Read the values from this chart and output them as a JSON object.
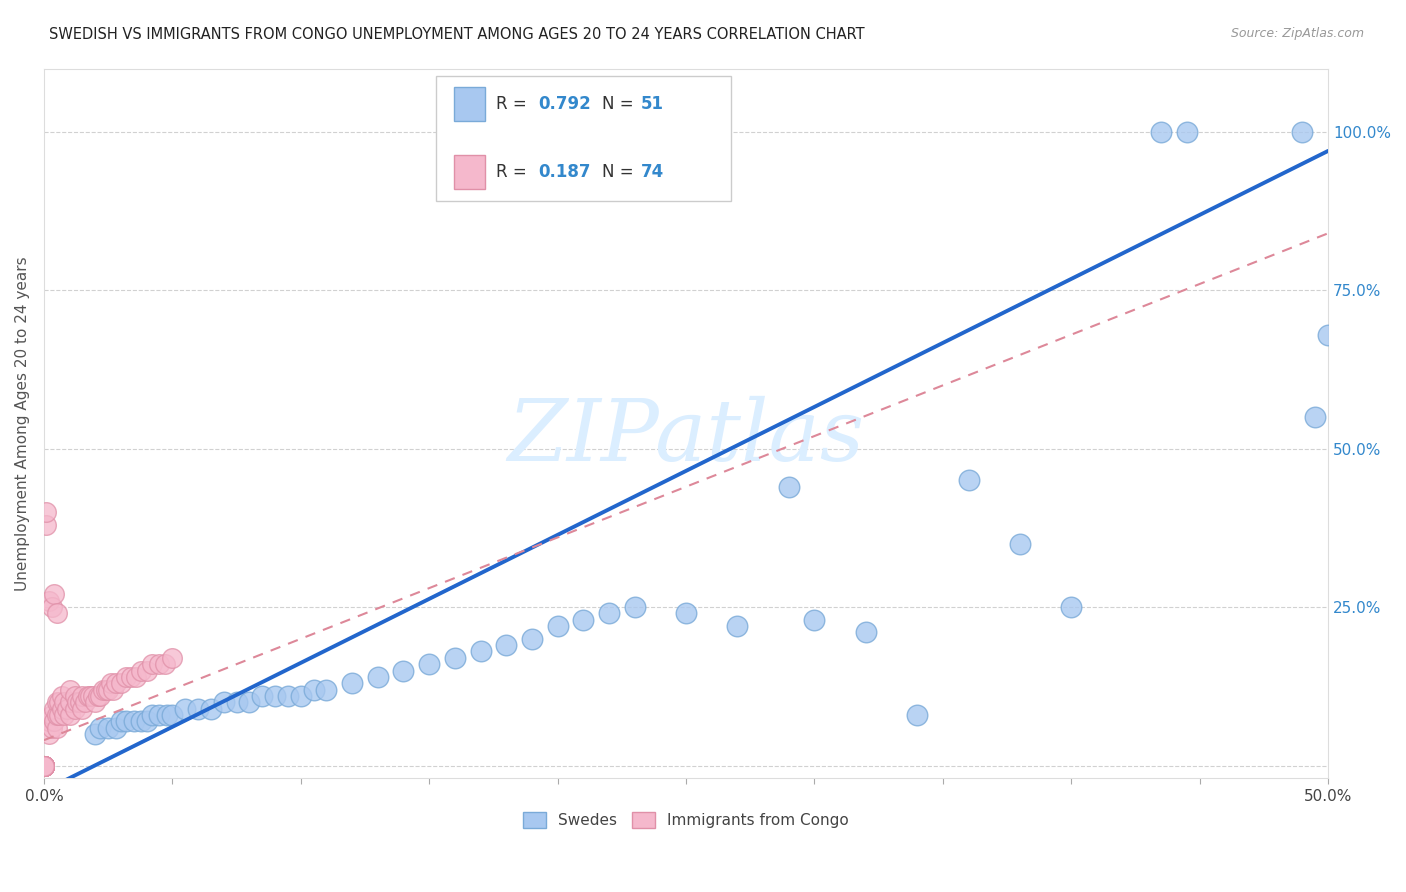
{
  "title": "SWEDISH VS IMMIGRANTS FROM CONGO UNEMPLOYMENT AMONG AGES 20 TO 24 YEARS CORRELATION CHART",
  "source": "Source: ZipAtlas.com",
  "ylabel": "Unemployment Among Ages 20 to 24 years",
  "xlim": [
    0.0,
    0.5
  ],
  "ylim": [
    -0.02,
    1.1
  ],
  "ytick_positions": [
    0.0,
    0.25,
    0.5,
    0.75,
    1.0
  ],
  "ytick_labels": [
    "",
    "25.0%",
    "50.0%",
    "75.0%",
    "100.0%"
  ],
  "legend_label1": "Swedes",
  "legend_label2": "Immigrants from Congo",
  "color_blue": "#a8c8f0",
  "color_blue_edge": "#7aaad8",
  "color_blue_line": "#2266cc",
  "color_pink": "#f5b8cc",
  "color_pink_edge": "#e090a8",
  "color_pink_line": "#e8a0b8",
  "background": "#ffffff",
  "grid_color": "#cccccc",
  "watermark": "ZIPatlas",
  "swedes_x": [
    0.02,
    0.022,
    0.025,
    0.028,
    0.03,
    0.032,
    0.035,
    0.038,
    0.04,
    0.042,
    0.045,
    0.048,
    0.05,
    0.055,
    0.06,
    0.065,
    0.07,
    0.075,
    0.08,
    0.085,
    0.09,
    0.095,
    0.1,
    0.105,
    0.11,
    0.12,
    0.13,
    0.14,
    0.15,
    0.16,
    0.17,
    0.18,
    0.19,
    0.2,
    0.21,
    0.22,
    0.23,
    0.25,
    0.27,
    0.29,
    0.3,
    0.32,
    0.34,
    0.36,
    0.38,
    0.4,
    0.435,
    0.445,
    0.49,
    0.495,
    0.5
  ],
  "swedes_y": [
    0.05,
    0.06,
    0.06,
    0.06,
    0.07,
    0.07,
    0.07,
    0.07,
    0.07,
    0.08,
    0.08,
    0.08,
    0.08,
    0.09,
    0.09,
    0.09,
    0.1,
    0.1,
    0.1,
    0.11,
    0.11,
    0.11,
    0.11,
    0.12,
    0.12,
    0.13,
    0.14,
    0.15,
    0.16,
    0.17,
    0.18,
    0.19,
    0.2,
    0.22,
    0.23,
    0.24,
    0.25,
    0.24,
    0.22,
    0.44,
    0.23,
    0.21,
    0.08,
    0.45,
    0.35,
    0.25,
    1.0,
    1.0,
    1.0,
    0.55,
    0.68
  ],
  "congo_x": [
    0.0,
    0.0,
    0.0,
    0.0,
    0.0,
    0.0,
    0.0,
    0.0,
    0.0,
    0.0,
    0.0,
    0.0,
    0.0,
    0.0,
    0.0,
    0.0,
    0.0,
    0.0,
    0.0,
    0.0,
    0.002,
    0.002,
    0.003,
    0.003,
    0.004,
    0.004,
    0.005,
    0.005,
    0.005,
    0.006,
    0.006,
    0.007,
    0.007,
    0.008,
    0.008,
    0.009,
    0.01,
    0.01,
    0.01,
    0.012,
    0.012,
    0.013,
    0.014,
    0.015,
    0.015,
    0.016,
    0.017,
    0.018,
    0.019,
    0.02,
    0.021,
    0.022,
    0.023,
    0.024,
    0.025,
    0.026,
    0.027,
    0.028,
    0.03,
    0.032,
    0.034,
    0.036,
    0.038,
    0.04,
    0.042,
    0.045,
    0.047,
    0.05,
    0.001,
    0.001,
    0.002,
    0.003,
    0.004,
    0.005
  ],
  "congo_y": [
    0.0,
    0.0,
    0.0,
    0.0,
    0.0,
    0.0,
    0.0,
    0.0,
    0.0,
    0.0,
    0.0,
    0.0,
    0.0,
    0.0,
    0.0,
    0.0,
    0.0,
    0.0,
    0.0,
    0.0,
    0.05,
    0.07,
    0.06,
    0.08,
    0.07,
    0.09,
    0.06,
    0.08,
    0.1,
    0.08,
    0.1,
    0.09,
    0.11,
    0.08,
    0.1,
    0.09,
    0.08,
    0.1,
    0.12,
    0.09,
    0.11,
    0.1,
    0.1,
    0.09,
    0.11,
    0.1,
    0.11,
    0.11,
    0.11,
    0.1,
    0.11,
    0.11,
    0.12,
    0.12,
    0.12,
    0.13,
    0.12,
    0.13,
    0.13,
    0.14,
    0.14,
    0.14,
    0.15,
    0.15,
    0.16,
    0.16,
    0.16,
    0.17,
    0.38,
    0.4,
    0.26,
    0.25,
    0.27,
    0.24
  ],
  "swedes_line_x": [
    0.0,
    0.5
  ],
  "swedes_line_y": [
    -0.04,
    0.97
  ],
  "congo_line_x": [
    0.0,
    0.5
  ],
  "congo_line_y": [
    0.04,
    0.84
  ]
}
